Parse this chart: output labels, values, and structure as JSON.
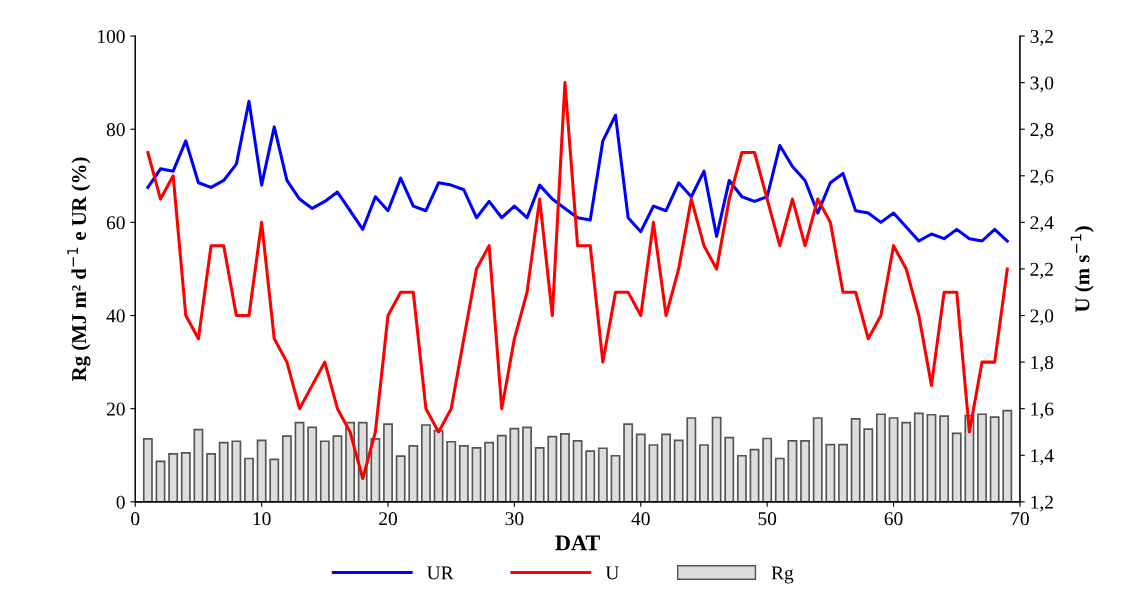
{
  "chart_data": {
    "type": "line",
    "xlabel": "DAT",
    "ylabel": "Rg (MJ m² d$^{−1}$ e UR (%)",
    "y2label": "U (m s$^{−1}$)",
    "x": [
      1,
      2,
      3,
      4,
      5,
      6,
      7,
      8,
      9,
      10,
      11,
      12,
      13,
      14,
      15,
      16,
      17,
      18,
      19,
      20,
      21,
      22,
      23,
      24,
      25,
      26,
      27,
      28,
      29,
      30,
      31,
      32,
      33,
      34,
      35,
      36,
      37,
      38,
      39,
      40,
      41,
      42,
      43,
      44,
      45,
      46,
      47,
      48,
      49,
      50,
      51,
      52,
      53,
      54,
      55,
      56,
      57,
      58,
      59,
      60,
      61,
      62,
      63,
      64,
      65,
      66,
      67,
      68,
      69
    ],
    "series": [
      {
        "name": "UR",
        "color": "#0000ff",
        "values": [
          67.5,
          71.5,
          71,
          77.5,
          68.5,
          67.5,
          69,
          72.5,
          86,
          68,
          80.5,
          69,
          65,
          63,
          64.5,
          66.5,
          62.5,
          58.5,
          65.5,
          62.5,
          69.5,
          63.5,
          62.5,
          68.5,
          68,
          67,
          61,
          64.5,
          61,
          63.5,
          61,
          68,
          65,
          63,
          61,
          60.5,
          77.5,
          83,
          61,
          58,
          63.5,
          62.5,
          68.5,
          65.5,
          71,
          57,
          69,
          65.5,
          64.5,
          65.5,
          76.5,
          72,
          69,
          62,
          68.5,
          70.5,
          62.5,
          62,
          60,
          62,
          59,
          56,
          57.5,
          56.5,
          58.5,
          56.5,
          56,
          58.5,
          56
        ]
      },
      {
        "name": "U",
        "color": "#ff0000",
        "axis": "y2",
        "values": [
          2.7,
          2.5,
          2.6,
          2.0,
          1.9,
          2.3,
          2.3,
          2.0,
          2.0,
          2.4,
          1.9,
          1.8,
          1.6,
          1.7,
          1.8,
          1.6,
          1.5,
          1.3,
          1.5,
          2.0,
          2.1,
          2.1,
          1.6,
          1.5,
          1.6,
          1.9,
          2.2,
          2.3,
          1.6,
          1.9,
          2.1,
          2.5,
          2.0,
          3.0,
          2.3,
          2.3,
          1.8,
          2.1,
          2.1,
          2.0,
          2.4,
          2.0,
          2.2,
          2.5,
          2.3,
          2.2,
          2.5,
          2.7,
          2.7,
          2.5,
          2.3,
          2.5,
          2.3,
          2.5,
          2.4,
          2.1,
          2.1,
          1.9,
          2.0,
          2.3,
          2.2,
          2.0,
          1.7,
          2.1,
          2.1,
          1.5,
          1.8,
          1.8,
          2.2
        ]
      },
      {
        "name": "Rg",
        "color": "#dddddd",
        "type": "bar",
        "values": [
          13.5,
          8.7,
          10.3,
          10.5,
          15.5,
          10.3,
          12.7,
          13,
          9.3,
          13.2,
          9.1,
          14.1,
          17,
          16,
          13,
          14.1,
          17,
          17,
          13.5,
          16.7,
          9.8,
          12,
          16.5,
          15.3,
          12.9,
          12,
          11.6,
          12.7,
          14.2,
          15.7,
          16,
          11.6,
          14,
          14.6,
          13.1,
          10.9,
          11.5,
          9.9,
          16.7,
          14.5,
          12.2,
          14.5,
          13.2,
          18,
          12.2,
          18.1,
          13.8,
          9.9,
          11.2,
          13.6,
          9.3,
          13.1,
          13.1,
          18,
          12.3,
          12.3,
          17.8,
          15.6,
          18.8,
          18,
          17,
          19,
          18.7,
          18.4,
          14.7,
          18.5,
          18.8,
          18.2,
          19.6
        ]
      }
    ],
    "xlim": [
      0,
      70
    ],
    "xticks": [
      0,
      10,
      20,
      30,
      40,
      50,
      60,
      70
    ],
    "ylim": [
      0,
      100
    ],
    "yticks": [
      0,
      20,
      40,
      60,
      80,
      100
    ],
    "y2lim": [
      1.2,
      3.2
    ],
    "y2ticks": [
      {
        "value": 1.2,
        "label": "1,2"
      },
      {
        "value": 1.4,
        "label": "1,4"
      },
      {
        "value": 1.6,
        "label": "1,6"
      },
      {
        "value": 1.8,
        "label": "1,8"
      },
      {
        "value": 2.0,
        "label": "2,0"
      },
      {
        "value": 2.2,
        "label": "2,2"
      },
      {
        "value": 2.4,
        "label": "2,4"
      },
      {
        "value": 2.6,
        "label": "2,6"
      },
      {
        "value": 2.8,
        "label": "2,8"
      },
      {
        "value": 3.0,
        "label": "3,0"
      },
      {
        "value": 3.2,
        "label": "3,2"
      }
    ],
    "legend": "bottom",
    "grid": false,
    "marker": "none",
    "line_style": "solid"
  }
}
